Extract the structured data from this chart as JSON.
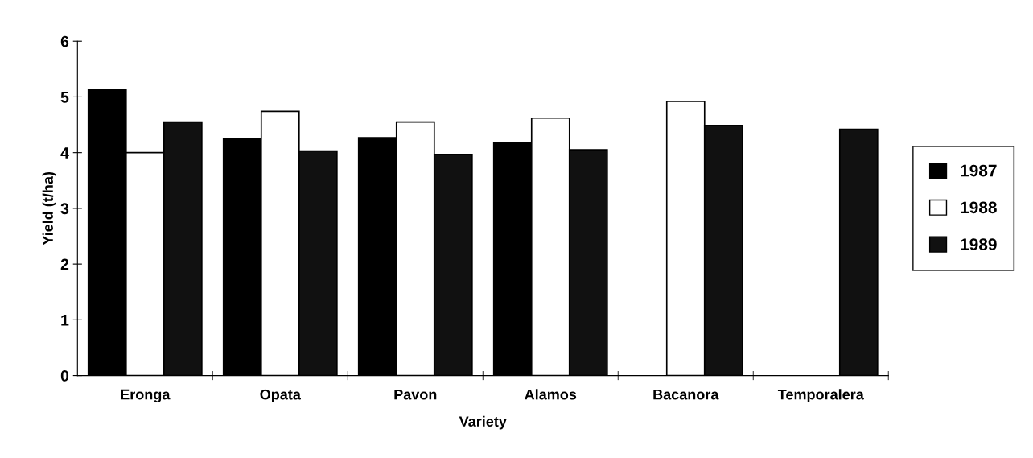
{
  "chart_data": {
    "type": "bar",
    "xlabel": "Variety",
    "ylabel": "Yield (t/ha)",
    "categories": [
      "Eronga",
      "Opata",
      "Pavon",
      "Alamos",
      "Bacanora",
      "Temporalera"
    ],
    "series": [
      {
        "name": "1987",
        "color": "#000000",
        "values": [
          5.13,
          4.25,
          4.27,
          4.18,
          null,
          null
        ]
      },
      {
        "name": "1988",
        "color": "#ffffff",
        "values": [
          4.0,
          4.74,
          4.55,
          4.62,
          4.92,
          null
        ]
      },
      {
        "name": "1989",
        "color": "#111111",
        "values": [
          4.55,
          4.03,
          3.97,
          4.05,
          4.49,
          4.42
        ]
      }
    ],
    "ylim": [
      0,
      6
    ],
    "yticks": [
      0,
      1,
      2,
      3,
      4,
      5,
      6
    ],
    "grid": false,
    "legend": "right"
  }
}
